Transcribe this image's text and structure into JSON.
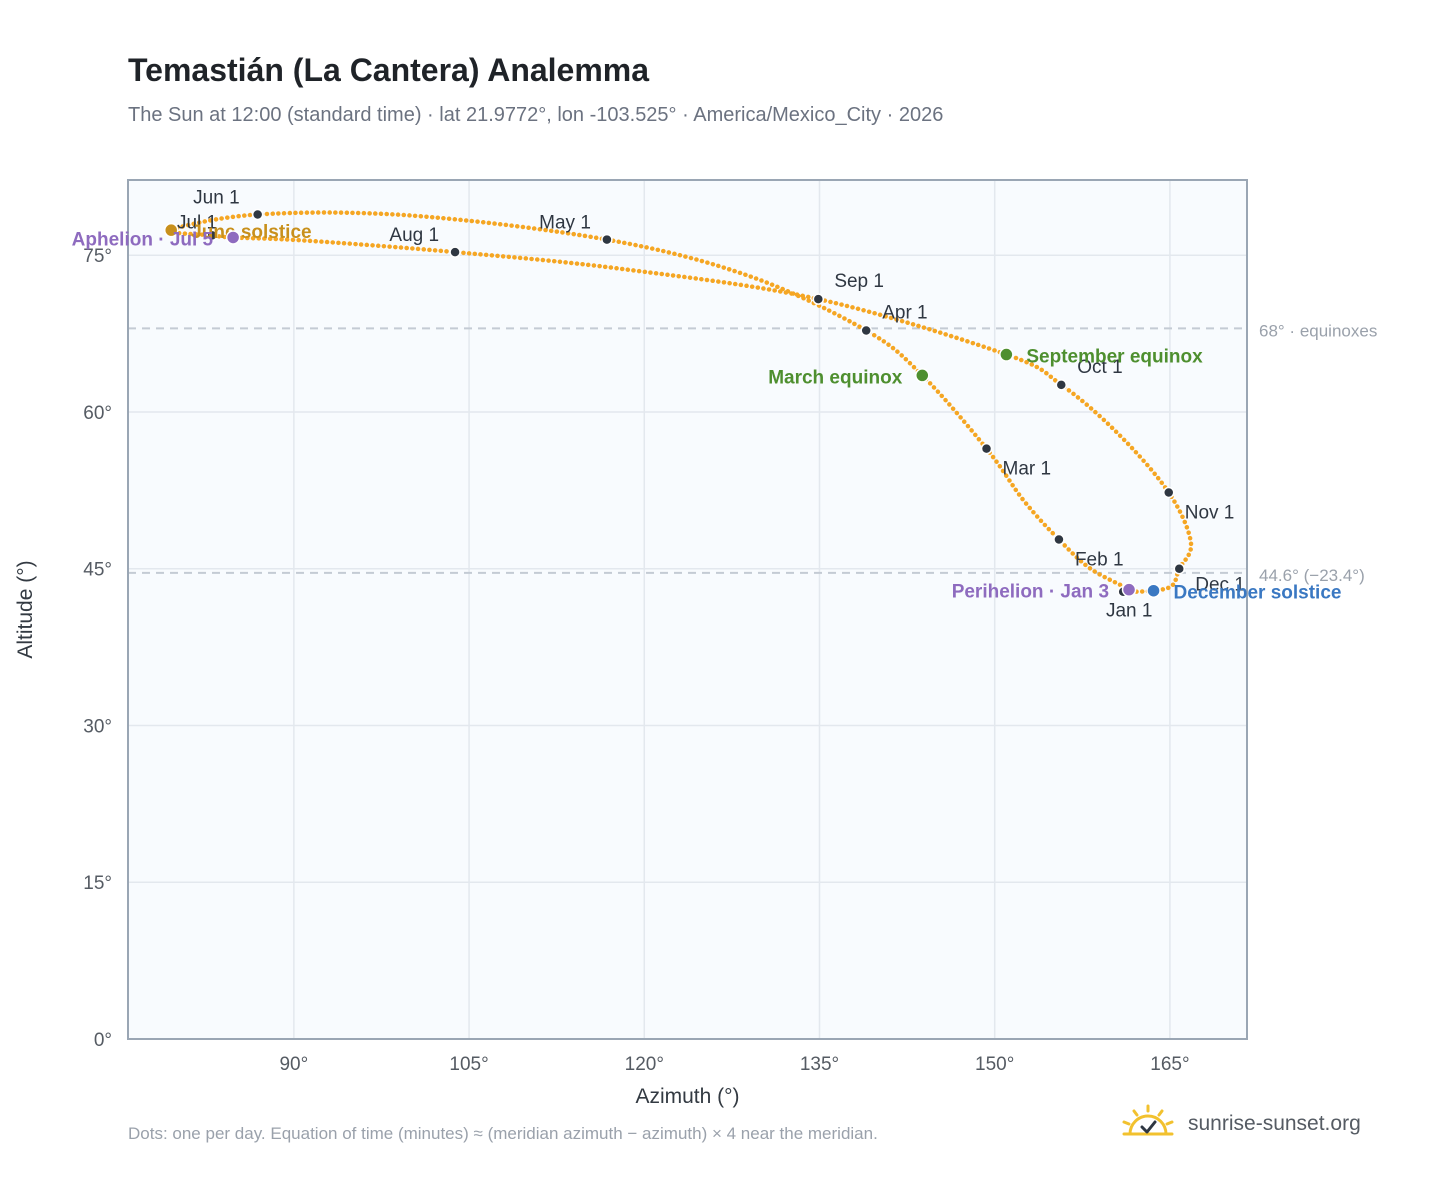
{
  "title": "Temastián (La Cantera) Analemma",
  "subtitle": "The Sun at 12:00 (standard time) · lat 21.9772°, lon -103.525° · America/Mexico_City · 2026",
  "footnote": "Dots: one per day. Equation of time (minutes) ≈ (meridian azimuth − azimuth) × 4 near the meridian.",
  "brand": {
    "name": "sunrise-sunset.org",
    "icon": "sun-logo-icon"
  },
  "colors": {
    "curve": "#f5a623",
    "month_marker": "#2f3742",
    "march_equinox": "#4e8f2f",
    "september_equinox": "#4e8f2f",
    "june_solstice": "#c8901c",
    "december_solstice": "#3a78c2",
    "apsis": "#8e6bbf",
    "reference_line": "#c4cbd4",
    "plot_background": "#f8fbfe",
    "frame": "#9aa6b4"
  },
  "chart_data": {
    "type": "scatter",
    "xlabel": "Azimuth (°)",
    "ylabel": "Altitude (°)",
    "xlim": [
      75.8,
      171.6
    ],
    "ylim": [
      0,
      82.2
    ],
    "x_ticks": [
      90,
      105,
      120,
      135,
      150,
      165
    ],
    "x_tick_labels": [
      "90°",
      "105°",
      "120°",
      "135°",
      "150°",
      "165°"
    ],
    "y_ticks": [
      0,
      15,
      30,
      45,
      60,
      75
    ],
    "y_tick_labels": [
      "0°",
      "15°",
      "30°",
      "45°",
      "60°",
      "75°"
    ],
    "grid": true,
    "reference_lines": [
      {
        "y": 68,
        "label": "68° · equinoxes"
      },
      {
        "y": 44.6,
        "label": "44.6° (−23.4°)"
      }
    ],
    "path": [
      {
        "date": "Dec 21",
        "az": 163.6,
        "alt": 42.9
      },
      {
        "date": "Jan 1",
        "az": 161.0,
        "alt": 42.8
      },
      {
        "date": "Jan 3",
        "az": 161.5,
        "alt": 43.0
      },
      {
        "date": "Jan 15",
        "az": 158.2,
        "alt": 45.0
      },
      {
        "date": "Feb 1",
        "az": 155.5,
        "alt": 47.8
      },
      {
        "date": "Feb 15",
        "az": 152.5,
        "alt": 51.5
      },
      {
        "date": "Mar 1",
        "az": 149.3,
        "alt": 56.5
      },
      {
        "date": "Mar 20",
        "az": 143.8,
        "alt": 63.5
      },
      {
        "date": "Apr 1",
        "az": 139.0,
        "alt": 67.8
      },
      {
        "date": "Apr 15",
        "az": 129.0,
        "alt": 73.0
      },
      {
        "date": "May 1",
        "az": 116.8,
        "alt": 76.5
      },
      {
        "date": "May 15",
        "az": 100.0,
        "alt": 78.8
      },
      {
        "date": "Jun 1",
        "az": 86.9,
        "alt": 78.9
      },
      {
        "date": "Jun 21",
        "az": 79.5,
        "alt": 77.4
      },
      {
        "date": "Jul 1",
        "az": 83.0,
        "alt": 76.9
      },
      {
        "date": "Jul 5",
        "az": 84.8,
        "alt": 76.7
      },
      {
        "date": "Jul 15",
        "az": 91.0,
        "alt": 76.4
      },
      {
        "date": "Aug 1",
        "az": 103.8,
        "alt": 75.3
      },
      {
        "date": "Aug 15",
        "az": 118.0,
        "alt": 73.7
      },
      {
        "date": "Sep 1",
        "az": 134.9,
        "alt": 70.8
      },
      {
        "date": "Sep 22",
        "az": 151.0,
        "alt": 65.5
      },
      {
        "date": "Oct 1",
        "az": 155.7,
        "alt": 62.6
      },
      {
        "date": "Oct 15",
        "az": 160.5,
        "alt": 58.0
      },
      {
        "date": "Nov 1",
        "az": 164.9,
        "alt": 52.3
      },
      {
        "date": "Nov 15",
        "az": 166.8,
        "alt": 47.5
      },
      {
        "date": "Dec 1",
        "az": 165.8,
        "alt": 45.0
      },
      {
        "date": "Dec 12",
        "az": 165.2,
        "alt": 43.4
      }
    ],
    "month_markers": [
      {
        "label": "Jan 1",
        "az": 161.0,
        "alt": 42.8,
        "pos": "below"
      },
      {
        "label": "Feb 1",
        "az": 155.5,
        "alt": 47.8,
        "pos": "right"
      },
      {
        "label": "Mar 1",
        "az": 149.3,
        "alt": 56.5,
        "pos": "right"
      },
      {
        "label": "Apr 1",
        "az": 139.0,
        "alt": 67.8,
        "pos": "right-up"
      },
      {
        "label": "May 1",
        "az": 116.8,
        "alt": 76.5,
        "pos": "up-left"
      },
      {
        "label": "Jun 1",
        "az": 86.9,
        "alt": 78.9,
        "pos": "up-left"
      },
      {
        "label": "Jul 1",
        "az": 83.0,
        "alt": 76.9,
        "pos": "up-left"
      },
      {
        "label": "Aug 1",
        "az": 103.8,
        "alt": 75.3,
        "pos": "up-left"
      },
      {
        "label": "Sep 1",
        "az": 134.9,
        "alt": 70.8,
        "pos": "right-up"
      },
      {
        "label": "Oct 1",
        "az": 155.7,
        "alt": 62.6,
        "pos": "right-down"
      },
      {
        "label": "Nov 1",
        "az": 164.9,
        "alt": 52.3,
        "pos": "right"
      },
      {
        "label": "Dec 1",
        "az": 165.8,
        "alt": 45.0,
        "pos": "right"
      }
    ],
    "events": [
      {
        "label": "March equinox",
        "az": 143.8,
        "alt": 63.5,
        "color_key": "march_equinox",
        "pos": "left"
      },
      {
        "label": "September equinox",
        "az": 151.0,
        "alt": 65.5,
        "color_key": "september_equinox",
        "pos": "right"
      },
      {
        "label": "June solstice",
        "az": 79.5,
        "alt": 77.4,
        "color_key": "june_solstice",
        "pos": "right"
      },
      {
        "label": "December solstice",
        "az": 163.6,
        "alt": 42.9,
        "color_key": "december_solstice",
        "pos": "right"
      },
      {
        "label": "Perihelion · Jan 3",
        "az": 161.5,
        "alt": 43.0,
        "color_key": "apsis",
        "pos": "left"
      },
      {
        "label": "Aphelion · Jul 5",
        "az": 84.8,
        "alt": 76.7,
        "color_key": "apsis",
        "pos": "left"
      }
    ]
  }
}
